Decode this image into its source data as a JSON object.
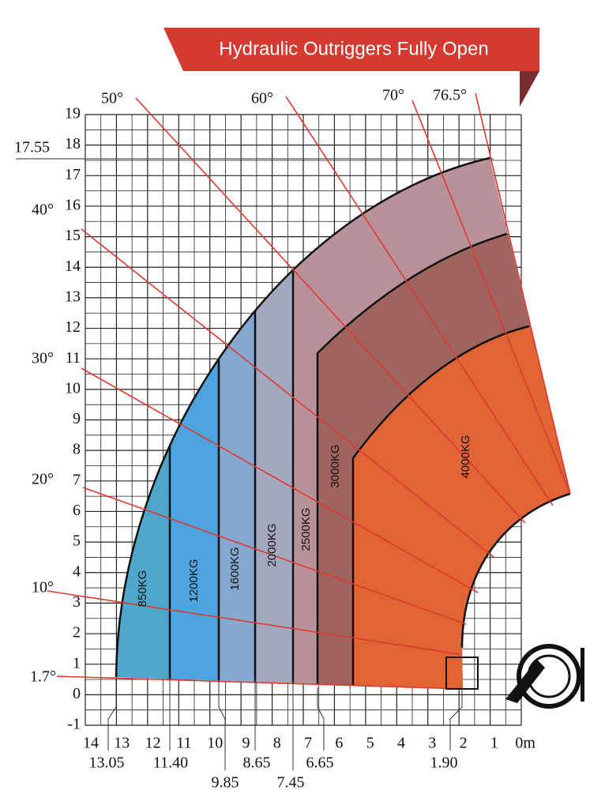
{
  "title": "Hydraulic Outriggers Fully Open",
  "y_axis": {
    "labels": [
      "19",
      "18",
      "17",
      "16",
      "15",
      "14",
      "13",
      "12",
      "11",
      "10",
      "9",
      "8",
      "7",
      "6",
      "5",
      "4",
      "3",
      "2",
      "1",
      "0",
      "-1"
    ]
  },
  "x_axis": {
    "labels": [
      "14",
      "13",
      "12",
      "11",
      "10",
      "9",
      "8",
      "7",
      "6",
      "5",
      "4",
      "3",
      "2",
      "1",
      "0m"
    ]
  },
  "x_markers": [
    "13.05",
    "11.40",
    "9.85",
    "8.65",
    "7.45",
    "6.65",
    "1.90"
  ],
  "height_marker": "17.55",
  "angles": [
    "1.7°",
    "10°",
    "20°",
    "30°",
    "40°",
    "50°",
    "60°",
    "70°",
    "76.5°"
  ],
  "zones": [
    "850KG",
    "1200KG",
    "1600KG",
    "2000KG",
    "2500KG",
    "3000KG",
    "4000KG"
  ]
}
